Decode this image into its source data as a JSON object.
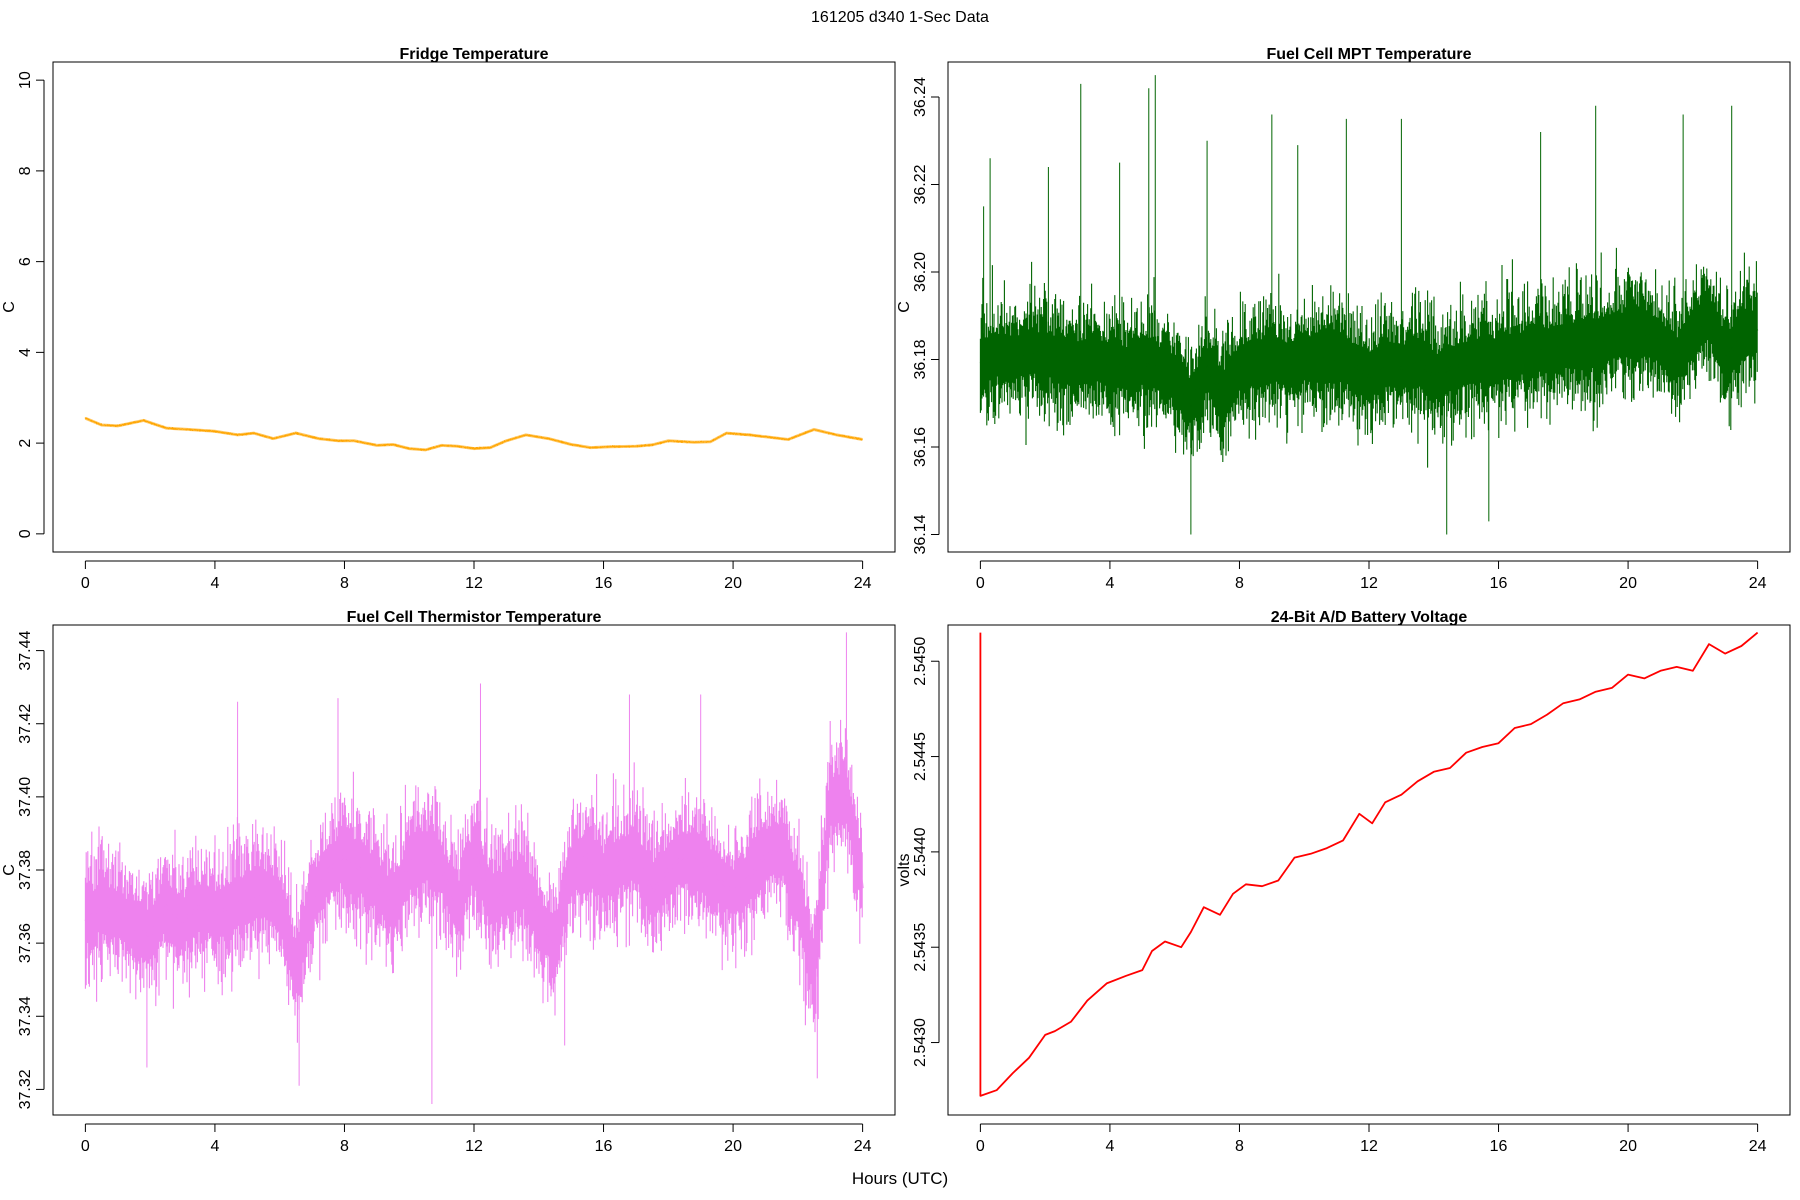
{
  "figure": {
    "title": "161205   d340   1-Sec Data",
    "xlabel": "Hours (UTC)"
  },
  "chart_data": [
    {
      "type": "line",
      "title": "Fridge Temperature",
      "xlabel": "Hours (UTC)",
      "ylabel": "C",
      "color": "#FFA500",
      "xlim": [
        -1,
        25
      ],
      "ylim": [
        -0.4,
        10.4
      ],
      "xticks": [
        0,
        4,
        8,
        12,
        16,
        20,
        24
      ],
      "yticks": [
        0,
        2,
        4,
        6,
        8,
        10
      ],
      "ytick_labels": [
        "0",
        "2",
        "4",
        "6",
        "8",
        "10"
      ],
      "noise": 0.015,
      "spikes": [],
      "x": [
        0,
        0.5,
        1.0,
        1.8,
        2.5,
        3.2,
        4.0,
        4.7,
        5.2,
        5.8,
        6.5,
        7.2,
        7.8,
        8.3,
        9.0,
        9.5,
        10.0,
        10.5,
        11.0,
        11.5,
        12.0,
        12.5,
        13.0,
        13.6,
        14.3,
        15.0,
        15.6,
        16.2,
        17.0,
        17.5,
        18.0,
        18.8,
        19.3,
        19.8,
        20.5,
        21.0,
        21.7,
        22.5,
        23.2,
        24.0
      ],
      "y": [
        2.55,
        2.4,
        2.38,
        2.5,
        2.33,
        2.3,
        2.26,
        2.18,
        2.22,
        2.1,
        2.22,
        2.1,
        2.05,
        2.05,
        1.95,
        1.97,
        1.88,
        1.85,
        1.95,
        1.93,
        1.88,
        1.9,
        2.05,
        2.18,
        2.1,
        1.97,
        1.9,
        1.92,
        1.93,
        1.96,
        2.05,
        2.02,
        2.03,
        2.22,
        2.18,
        2.14,
        2.08,
        2.3,
        2.18,
        2.08
      ]
    },
    {
      "type": "line",
      "title": "Fuel Cell MPT Temperature",
      "xlabel": "Hours (UTC)",
      "ylabel": "C",
      "color": "#006400",
      "xlim": [
        -1,
        25
      ],
      "ylim": [
        36.136,
        36.248
      ],
      "xticks": [
        0,
        4,
        8,
        12,
        16,
        20,
        24
      ],
      "yticks": [
        36.14,
        36.16,
        36.18,
        36.2,
        36.22,
        36.24
      ],
      "ytick_labels": [
        "36.14",
        "36.16",
        "36.18",
        "36.20",
        "36.22",
        "36.24"
      ],
      "noise": 0.0095,
      "spikes": [
        [
          0.1,
          36.215
        ],
        [
          0.3,
          36.226
        ],
        [
          2.1,
          36.224
        ],
        [
          3.1,
          36.243
        ],
        [
          4.3,
          36.225
        ],
        [
          5.2,
          36.242
        ],
        [
          5.4,
          36.245
        ],
        [
          6.5,
          36.14
        ],
        [
          7.0,
          36.23
        ],
        [
          9.0,
          36.236
        ],
        [
          9.8,
          36.229
        ],
        [
          11.3,
          36.235
        ],
        [
          13.0,
          36.235
        ],
        [
          14.4,
          36.14
        ],
        [
          15.7,
          36.143
        ],
        [
          17.3,
          36.232
        ],
        [
          19.0,
          36.238
        ],
        [
          21.7,
          36.236
        ],
        [
          23.2,
          36.238
        ]
      ],
      "x": [
        0,
        0.5,
        1,
        1.5,
        2,
        2.5,
        3,
        3.5,
        4,
        4.5,
        5,
        5.5,
        6,
        6.5,
        7,
        7.5,
        8,
        8.5,
        9,
        9.5,
        10,
        10.5,
        11,
        11.5,
        12,
        12.5,
        13,
        13.5,
        14,
        14.5,
        15,
        15.5,
        16,
        16.5,
        17,
        17.5,
        18,
        18.5,
        19,
        19.5,
        20,
        20.5,
        21,
        21.5,
        22,
        22.5,
        23,
        23.5,
        24
      ],
      "y": [
        36.179,
        36.181,
        36.18,
        36.182,
        36.181,
        36.18,
        36.179,
        36.18,
        36.179,
        36.178,
        36.179,
        36.178,
        36.176,
        36.17,
        36.178,
        36.172,
        36.178,
        36.179,
        36.18,
        36.179,
        36.18,
        36.181,
        36.18,
        36.179,
        36.176,
        36.179,
        36.178,
        36.18,
        36.176,
        36.178,
        36.179,
        36.18,
        36.18,
        36.181,
        36.182,
        36.182,
        36.183,
        36.184,
        36.184,
        36.185,
        36.186,
        36.186,
        36.184,
        36.18,
        36.186,
        36.19,
        36.18,
        36.185,
        36.187
      ]
    },
    {
      "type": "line",
      "title": "Fuel Cell Thermistor Temperature",
      "xlabel": "Hours (UTC)",
      "ylabel": "C",
      "color": "#EE82EE",
      "xlim": [
        -1,
        25
      ],
      "ylim": [
        37.313,
        37.447
      ],
      "xticks": [
        0,
        4,
        8,
        12,
        16,
        20,
        24
      ],
      "yticks": [
        37.32,
        37.34,
        37.36,
        37.38,
        37.4,
        37.42,
        37.44
      ],
      "ytick_labels": [
        "37.32",
        "37.34",
        "37.36",
        "37.38",
        "37.40",
        "37.42",
        "37.44"
      ],
      "noise": 0.012,
      "spikes": [
        [
          1.9,
          37.326
        ],
        [
          4.7,
          37.426
        ],
        [
          6.6,
          37.321
        ],
        [
          7.8,
          37.427
        ],
        [
          10.7,
          37.316
        ],
        [
          12.2,
          37.431
        ],
        [
          14.8,
          37.332
        ],
        [
          16.8,
          37.428
        ],
        [
          19.0,
          37.428
        ],
        [
          22.6,
          37.323
        ],
        [
          23.5,
          37.445
        ]
      ],
      "x": [
        0,
        0.5,
        1,
        1.5,
        2,
        2.5,
        3,
        3.5,
        4,
        4.5,
        5,
        5.5,
        6,
        6.5,
        7,
        7.5,
        8,
        8.5,
        9,
        9.5,
        10,
        10.5,
        11,
        11.5,
        12,
        12.5,
        13,
        13.5,
        14,
        14.5,
        15,
        15.5,
        16,
        16.5,
        17,
        17.5,
        18,
        18.5,
        19,
        19.5,
        20,
        20.5,
        21,
        21.5,
        22,
        22.5,
        23,
        23.5,
        24
      ],
      "y": [
        37.366,
        37.37,
        37.368,
        37.364,
        37.362,
        37.37,
        37.366,
        37.37,
        37.368,
        37.37,
        37.372,
        37.374,
        37.37,
        37.352,
        37.372,
        37.38,
        37.384,
        37.38,
        37.376,
        37.37,
        37.382,
        37.385,
        37.38,
        37.37,
        37.385,
        37.372,
        37.374,
        37.376,
        37.366,
        37.36,
        37.38,
        37.384,
        37.378,
        37.382,
        37.384,
        37.374,
        37.38,
        37.384,
        37.382,
        37.378,
        37.374,
        37.378,
        37.384,
        37.386,
        37.372,
        37.352,
        37.398,
        37.4,
        37.375
      ]
    },
    {
      "type": "line",
      "title": "24-Bit A/D Battery Voltage",
      "xlabel": "Hours (UTC)",
      "ylabel": "volts",
      "color": "#FF0000",
      "xlim": [
        -1,
        25
      ],
      "ylim": [
        2.54262,
        2.54519
      ],
      "xticks": [
        0,
        4,
        8,
        12,
        16,
        20,
        24
      ],
      "yticks": [
        2.543,
        2.5435,
        2.544,
        2.5445,
        2.545
      ],
      "ytick_labels": [
        "2.5430",
        "2.5435",
        "2.5440",
        "2.5445",
        "2.5450"
      ],
      "noise": 0,
      "spikes": [],
      "x": [
        0,
        0.001,
        0.5,
        1.0,
        1.5,
        2.0,
        2.3,
        2.8,
        3.3,
        3.9,
        4.5,
        5.0,
        5.3,
        5.7,
        6.2,
        6.5,
        6.9,
        7.4,
        7.8,
        8.2,
        8.7,
        9.2,
        9.7,
        10.2,
        10.7,
        11.2,
        11.7,
        12.1,
        12.5,
        13.0,
        13.5,
        14.0,
        14.5,
        15.0,
        15.5,
        16.0,
        16.5,
        17.0,
        17.5,
        18.0,
        18.5,
        19.0,
        19.5,
        20.0,
        20.5,
        21.0,
        21.5,
        22.0,
        22.5,
        23.0,
        23.5,
        24.0
      ],
      "y": [
        2.54515,
        2.54272,
        2.54275,
        2.54284,
        2.54292,
        2.54304,
        2.54306,
        2.54311,
        2.54322,
        2.54331,
        2.54335,
        2.54338,
        2.54348,
        2.54353,
        2.5435,
        2.54358,
        2.54371,
        2.54367,
        2.54378,
        2.54383,
        2.54382,
        2.54385,
        2.54397,
        2.54399,
        2.54402,
        2.54406,
        2.5442,
        2.54415,
        2.54426,
        2.5443,
        2.54437,
        2.54442,
        2.54444,
        2.54452,
        2.54455,
        2.54457,
        2.54465,
        2.54467,
        2.54472,
        2.54478,
        2.5448,
        2.54484,
        2.54486,
        2.54493,
        2.54491,
        2.54495,
        2.54497,
        2.54495,
        2.54509,
        2.54504,
        2.54508,
        2.54515
      ]
    }
  ]
}
